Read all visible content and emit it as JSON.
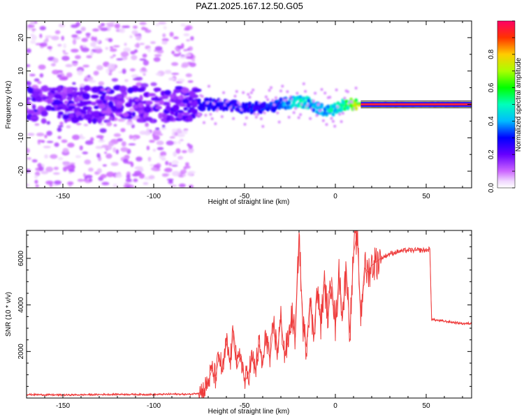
{
  "title": "PAZ1.2025.167.12.50.G05",
  "chart_data": [
    {
      "type": "heatmap",
      "xlabel": "Height of straight line (km)",
      "ylabel": "Frequency (Hz)",
      "xlim": [
        -170,
        75
      ],
      "ylim": [
        -25,
        25
      ],
      "xticks": [
        -150,
        -100,
        -50,
        0,
        50
      ],
      "yticks": [
        -20,
        -10,
        0,
        10,
        20
      ],
      "colorbar": {
        "label": "Normalized spectral amplitude",
        "range": [
          0,
          1
        ],
        "ticks": [
          0.0,
          0.2,
          0.4,
          0.6,
          0.8
        ],
        "colormap": "rainbow"
      },
      "ridge": {
        "x": [
          -75,
          -60,
          -50,
          -40,
          -30,
          -20,
          -15,
          -10,
          -5,
          0,
          5,
          10,
          20,
          40,
          60,
          75
        ],
        "frequency": [
          0,
          0,
          -1,
          -1,
          0,
          1,
          0.5,
          -1,
          -2,
          -1.5,
          0,
          0,
          0,
          0,
          0,
          0
        ],
        "amplitude": [
          0.28,
          0.3,
          0.3,
          0.3,
          0.35,
          0.5,
          0.45,
          0.4,
          0.45,
          0.5,
          0.55,
          0.65,
          0.95,
          1,
          1,
          0.9
        ]
      }
    },
    {
      "type": "line",
      "xlabel": "Height of straight line (km)",
      "ylabel": "SNR (10 * v/v)",
      "xlim": [
        -170,
        75
      ],
      "ylim": [
        0,
        7200
      ],
      "xticks": [
        -150,
        -100,
        -50,
        0,
        50
      ],
      "yticks": [
        2000,
        4000,
        6000
      ],
      "series": [
        {
          "color": "#ee3b3b",
          "x": [
            -170,
            -150,
            -120,
            -100,
            -90,
            -80,
            -75,
            -72,
            -70,
            -68,
            -66,
            -64,
            -62,
            -60,
            -58,
            -56,
            -54,
            -52,
            -50,
            -48,
            -46,
            -44,
            -42,
            -40,
            -38,
            -36,
            -34,
            -32,
            -30,
            -28,
            -26,
            -24,
            -22,
            -20,
            -18,
            -16,
            -14,
            -12,
            -10,
            -8,
            -6,
            -4,
            -2,
            0,
            2,
            4,
            6,
            8,
            10,
            12,
            14,
            16,
            18,
            20,
            25,
            30,
            35,
            40,
            45,
            50,
            52,
            53,
            55,
            60,
            65,
            70,
            75
          ],
          "y": [
            150,
            130,
            160,
            150,
            170,
            160,
            220,
            350,
            700,
            1200,
            900,
            1800,
            1100,
            2400,
            1500,
            2900,
            1300,
            1900,
            700,
            1000,
            1700,
            1200,
            2300,
            1400,
            2800,
            1600,
            3200,
            2000,
            3400,
            1900,
            2400,
            3600,
            2600,
            7100,
            3200,
            2200,
            4200,
            2700,
            4600,
            3200,
            4900,
            3500,
            5200,
            3000,
            5300,
            3600,
            5600,
            2800,
            6200,
            7100,
            3500,
            5600,
            5400,
            5700,
            6000,
            6200,
            6300,
            6350,
            6350,
            6350,
            6400,
            3400,
            3350,
            3300,
            3250,
            3200,
            3200
          ]
        }
      ]
    }
  ]
}
